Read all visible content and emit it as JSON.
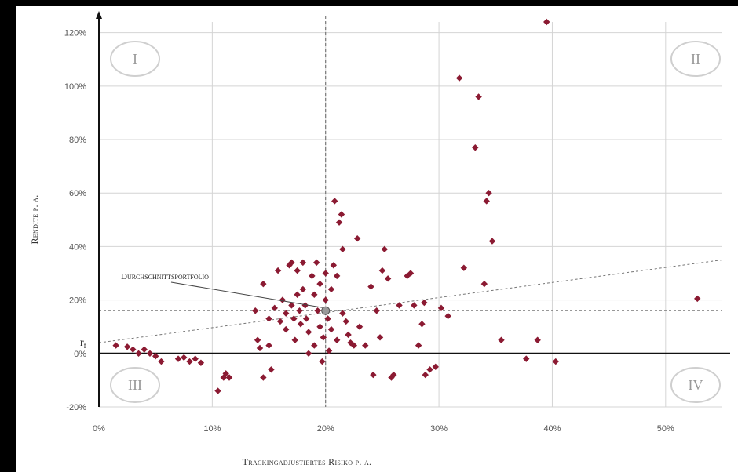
{
  "chart_data": {
    "type": "scatter",
    "xlabel": "Trackingadjustiertes Risiko p. a.",
    "ylabel": "Rendite p. a.",
    "xlim": [
      0,
      55
    ],
    "ylim": [
      -20,
      124
    ],
    "x_ticks": [
      0,
      10,
      20,
      30,
      40,
      50
    ],
    "y_ticks": [
      -20,
      0,
      20,
      40,
      60,
      80,
      100,
      120
    ],
    "x_tick_labels": [
      "0%",
      "10%",
      "20%",
      "30%",
      "40%",
      "50%"
    ],
    "y_tick_labels": [
      "-20%",
      "0%",
      "20%",
      "40%",
      "60%",
      "80%",
      "100%",
      "120%"
    ],
    "grid": true,
    "marker_color": "#8B1A32",
    "quadrants": [
      "I",
      "II",
      "III",
      "IV"
    ],
    "risk_free_label": "r",
    "risk_free_sub": "f",
    "risk_free_rate": 4,
    "average_portfolio": {
      "label": "Durchschnittsportfolio",
      "x": 20,
      "y": 16
    },
    "capital_market_line": {
      "x": [
        0,
        55
      ],
      "y": [
        4,
        35
      ]
    },
    "points": [
      {
        "x": 1.5,
        "y": 3
      },
      {
        "x": 2.5,
        "y": 2.5
      },
      {
        "x": 3,
        "y": 1.5
      },
      {
        "x": 3.5,
        "y": 0
      },
      {
        "x": 4,
        "y": 1.5
      },
      {
        "x": 4.5,
        "y": 0
      },
      {
        "x": 5,
        "y": -1
      },
      {
        "x": 5.5,
        "y": -3
      },
      {
        "x": 7,
        "y": -2
      },
      {
        "x": 7.5,
        "y": -1.5
      },
      {
        "x": 8,
        "y": -3
      },
      {
        "x": 8.5,
        "y": -2
      },
      {
        "x": 9,
        "y": -3.5
      },
      {
        "x": 10.5,
        "y": -14
      },
      {
        "x": 11,
        "y": -9
      },
      {
        "x": 11.2,
        "y": -7.5
      },
      {
        "x": 11.5,
        "y": -9
      },
      {
        "x": 13.8,
        "y": 16
      },
      {
        "x": 14,
        "y": 5
      },
      {
        "x": 14.2,
        "y": 2
      },
      {
        "x": 14.5,
        "y": 26
      },
      {
        "x": 14.5,
        "y": -9
      },
      {
        "x": 15,
        "y": 13
      },
      {
        "x": 15,
        "y": 3
      },
      {
        "x": 15.2,
        "y": -6
      },
      {
        "x": 15.5,
        "y": 17
      },
      {
        "x": 15.8,
        "y": 31
      },
      {
        "x": 16,
        "y": 12
      },
      {
        "x": 16.2,
        "y": 20
      },
      {
        "x": 16.5,
        "y": 15
      },
      {
        "x": 16.5,
        "y": 9
      },
      {
        "x": 16.8,
        "y": 33
      },
      {
        "x": 17,
        "y": 34
      },
      {
        "x": 17,
        "y": 18
      },
      {
        "x": 17.2,
        "y": 13
      },
      {
        "x": 17.3,
        "y": 5
      },
      {
        "x": 17.5,
        "y": 31
      },
      {
        "x": 17.5,
        "y": 22
      },
      {
        "x": 17.7,
        "y": 16
      },
      {
        "x": 17.8,
        "y": 11
      },
      {
        "x": 18,
        "y": 34
      },
      {
        "x": 18,
        "y": 24
      },
      {
        "x": 18.2,
        "y": 18
      },
      {
        "x": 18.3,
        "y": 13
      },
      {
        "x": 18.5,
        "y": 8
      },
      {
        "x": 18.5,
        "y": 0
      },
      {
        "x": 18.8,
        "y": 29
      },
      {
        "x": 19,
        "y": 22
      },
      {
        "x": 19,
        "y": 3
      },
      {
        "x": 19.2,
        "y": 34
      },
      {
        "x": 19.3,
        "y": 16
      },
      {
        "x": 19.5,
        "y": 10
      },
      {
        "x": 19.5,
        "y": 26
      },
      {
        "x": 19.7,
        "y": -3
      },
      {
        "x": 19.8,
        "y": 6
      },
      {
        "x": 20,
        "y": 30
      },
      {
        "x": 20,
        "y": 20
      },
      {
        "x": 20.2,
        "y": 13
      },
      {
        "x": 20.3,
        "y": 1
      },
      {
        "x": 20.5,
        "y": 24
      },
      {
        "x": 20.5,
        "y": 9
      },
      {
        "x": 20.7,
        "y": 33
      },
      {
        "x": 20.8,
        "y": 57
      },
      {
        "x": 21,
        "y": 29
      },
      {
        "x": 21,
        "y": 5
      },
      {
        "x": 21.2,
        "y": 49
      },
      {
        "x": 21.4,
        "y": 52
      },
      {
        "x": 21.5,
        "y": 39
      },
      {
        "x": 21.5,
        "y": 15
      },
      {
        "x": 21.8,
        "y": 12
      },
      {
        "x": 22,
        "y": 7
      },
      {
        "x": 22.2,
        "y": 4
      },
      {
        "x": 22.5,
        "y": 3
      },
      {
        "x": 22.8,
        "y": 43
      },
      {
        "x": 23,
        "y": 10
      },
      {
        "x": 23.5,
        "y": 3
      },
      {
        "x": 24,
        "y": 25
      },
      {
        "x": 24.2,
        "y": -8
      },
      {
        "x": 24.5,
        "y": 16
      },
      {
        "x": 24.8,
        "y": 6
      },
      {
        "x": 25,
        "y": 31
      },
      {
        "x": 25.2,
        "y": 39
      },
      {
        "x": 25.5,
        "y": 28
      },
      {
        "x": 25.8,
        "y": -9
      },
      {
        "x": 26,
        "y": -8
      },
      {
        "x": 26.5,
        "y": 18
      },
      {
        "x": 27.2,
        "y": 29
      },
      {
        "x": 27.5,
        "y": 30
      },
      {
        "x": 27.8,
        "y": 18
      },
      {
        "x": 28.2,
        "y": 3
      },
      {
        "x": 28.5,
        "y": 11
      },
      {
        "x": 28.7,
        "y": 19
      },
      {
        "x": 28.8,
        "y": -8
      },
      {
        "x": 29.2,
        "y": -6
      },
      {
        "x": 29.7,
        "y": -5
      },
      {
        "x": 30.2,
        "y": 17
      },
      {
        "x": 30.8,
        "y": 14
      },
      {
        "x": 31.8,
        "y": 103
      },
      {
        "x": 32.2,
        "y": 32
      },
      {
        "x": 33.2,
        "y": 77
      },
      {
        "x": 33.5,
        "y": 96
      },
      {
        "x": 34,
        "y": 26
      },
      {
        "x": 34.2,
        "y": 57
      },
      {
        "x": 34.4,
        "y": 60
      },
      {
        "x": 34.7,
        "y": 42
      },
      {
        "x": 35.5,
        "y": 5
      },
      {
        "x": 37.7,
        "y": -2
      },
      {
        "x": 38.7,
        "y": 5
      },
      {
        "x": 39.5,
        "y": 124
      },
      {
        "x": 40.3,
        "y": -3
      },
      {
        "x": 52.8,
        "y": 20.5
      }
    ]
  }
}
